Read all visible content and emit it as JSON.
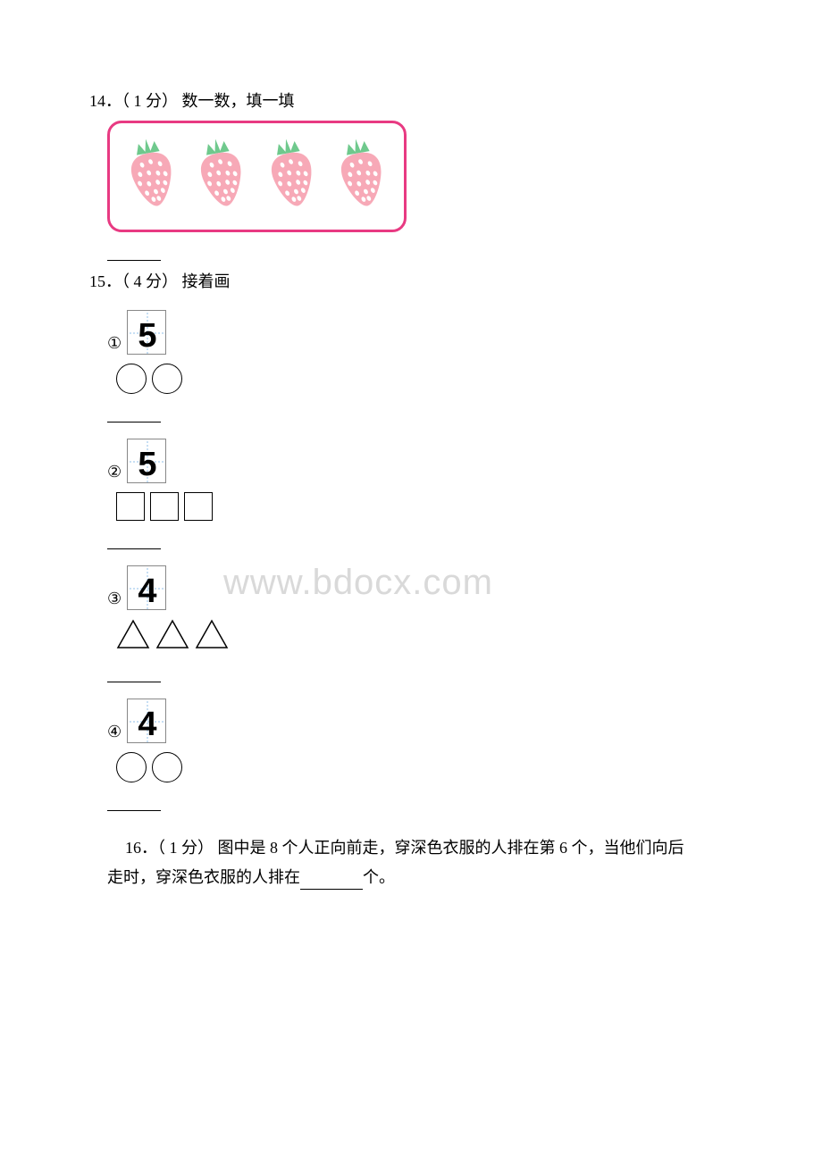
{
  "q14": {
    "number": "14．",
    "points": "（ 1 分）",
    "title": " 数一数，填一填",
    "strawberry_count": 4,
    "strawberry_body_color": "#f7a9b7",
    "strawberry_leaf_color": "#6fc98d",
    "strawberry_seed_color": "#ffffff",
    "box_border_color": "#e83a82"
  },
  "q15": {
    "number": "15．",
    "points": "（ 4 分）",
    "title": " 接着画",
    "card_border": "#888888",
    "card_grid": "#8fbfe8",
    "digit_color": "#000000",
    "items": [
      {
        "label": "①",
        "digit": "5",
        "shape": "circle",
        "count": 2
      },
      {
        "label": "②",
        "digit": "5",
        "shape": "square",
        "count": 3
      },
      {
        "label": "③",
        "digit": "4",
        "shape": "triangle",
        "count": 3
      },
      {
        "label": "④",
        "digit": "4",
        "shape": "circle",
        "count": 2
      }
    ]
  },
  "q16": {
    "number": "16．",
    "points": "（ 1 分）",
    "text_a": " 图中是 8 个人正向前走，穿深色衣服的人排在第 6 个，当他们向后",
    "text_b": "走时，穿深色衣服的人排在",
    "text_c": "个。"
  },
  "watermark": "www.bdocx.com"
}
